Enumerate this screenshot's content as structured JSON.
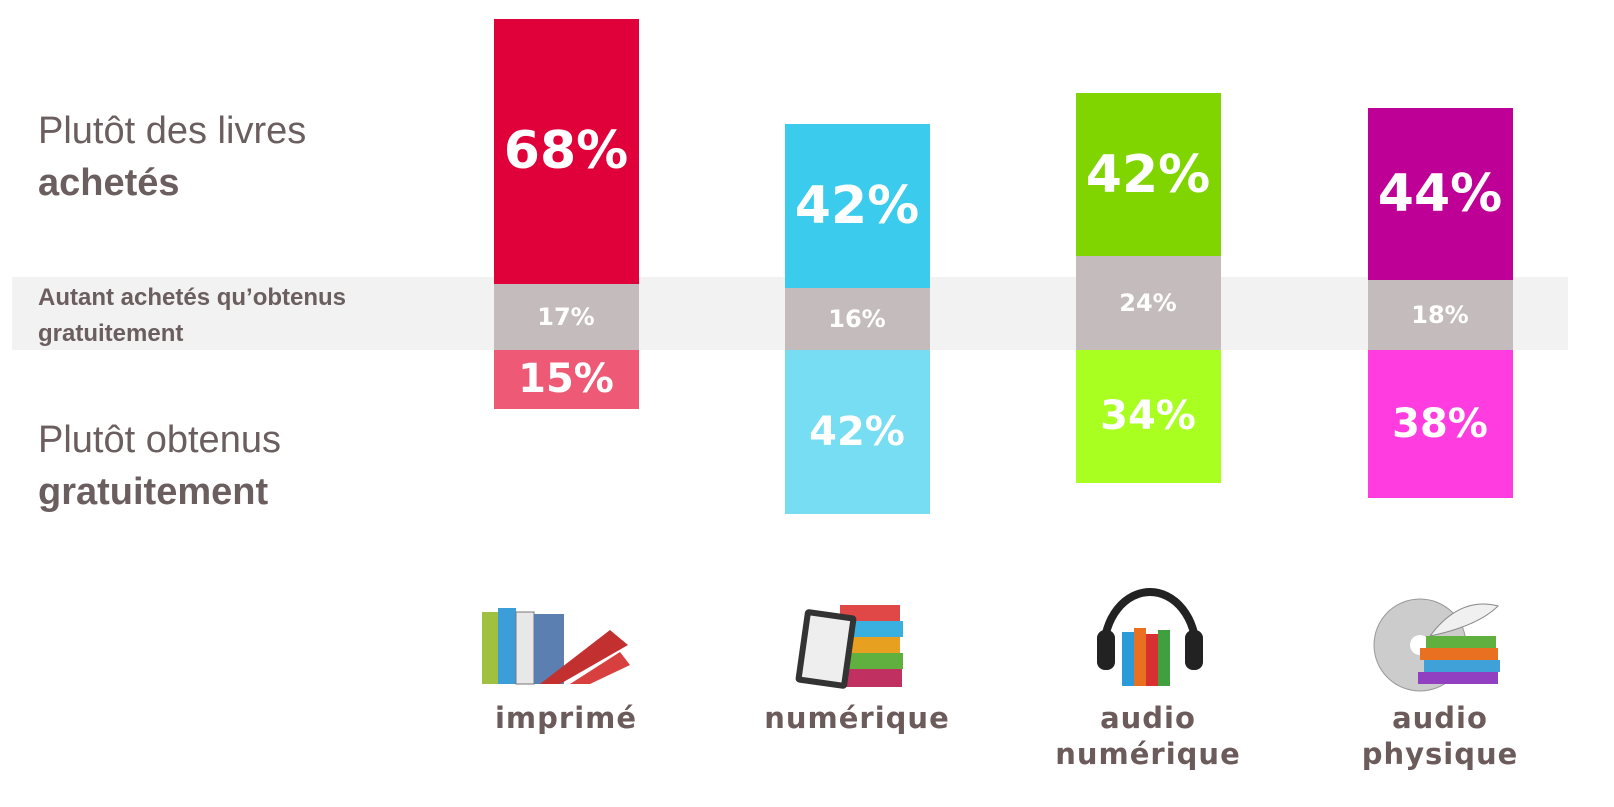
{
  "chart_data": {
    "type": "diverging-stacked-bar",
    "categories": [
      "imprimé",
      "numérique",
      "audio numérique",
      "audio physique"
    ],
    "series": [
      {
        "name": [
          {
            "text": "Plutôt des livres "
          },
          {
            "text": "achetés",
            "bold": true
          }
        ],
        "colors": [
          "#e0003a",
          "#3bcbec",
          "#80d400",
          "#be0096"
        ],
        "values": [
          68,
          42,
          42,
          44
        ],
        "value_labels": [
          "68%",
          "42%",
          "42%",
          "44%"
        ]
      },
      {
        "name": [
          {
            "text": "Autant achetés qu’obtenus gratuitement",
            "bold": true
          }
        ],
        "colors": [
          "#c4bcbc",
          "#c4bcbc",
          "#c4bcbc",
          "#c4bcbc"
        ],
        "values": [
          17,
          16,
          24,
          18
        ],
        "value_labels": [
          "17%",
          "16%",
          "24%",
          "18%"
        ]
      },
      {
        "name": [
          {
            "text": "Plutôt obtenus "
          },
          {
            "text": "gratuitement",
            "bold": true
          }
        ],
        "colors": [
          "#ee5a75",
          "#76ddf2",
          "#a8ff20",
          "#ff3ce0"
        ],
        "values": [
          15,
          42,
          34,
          38
        ],
        "value_labels": [
          "15%",
          "42%",
          "34%",
          "38%"
        ]
      }
    ]
  }
}
